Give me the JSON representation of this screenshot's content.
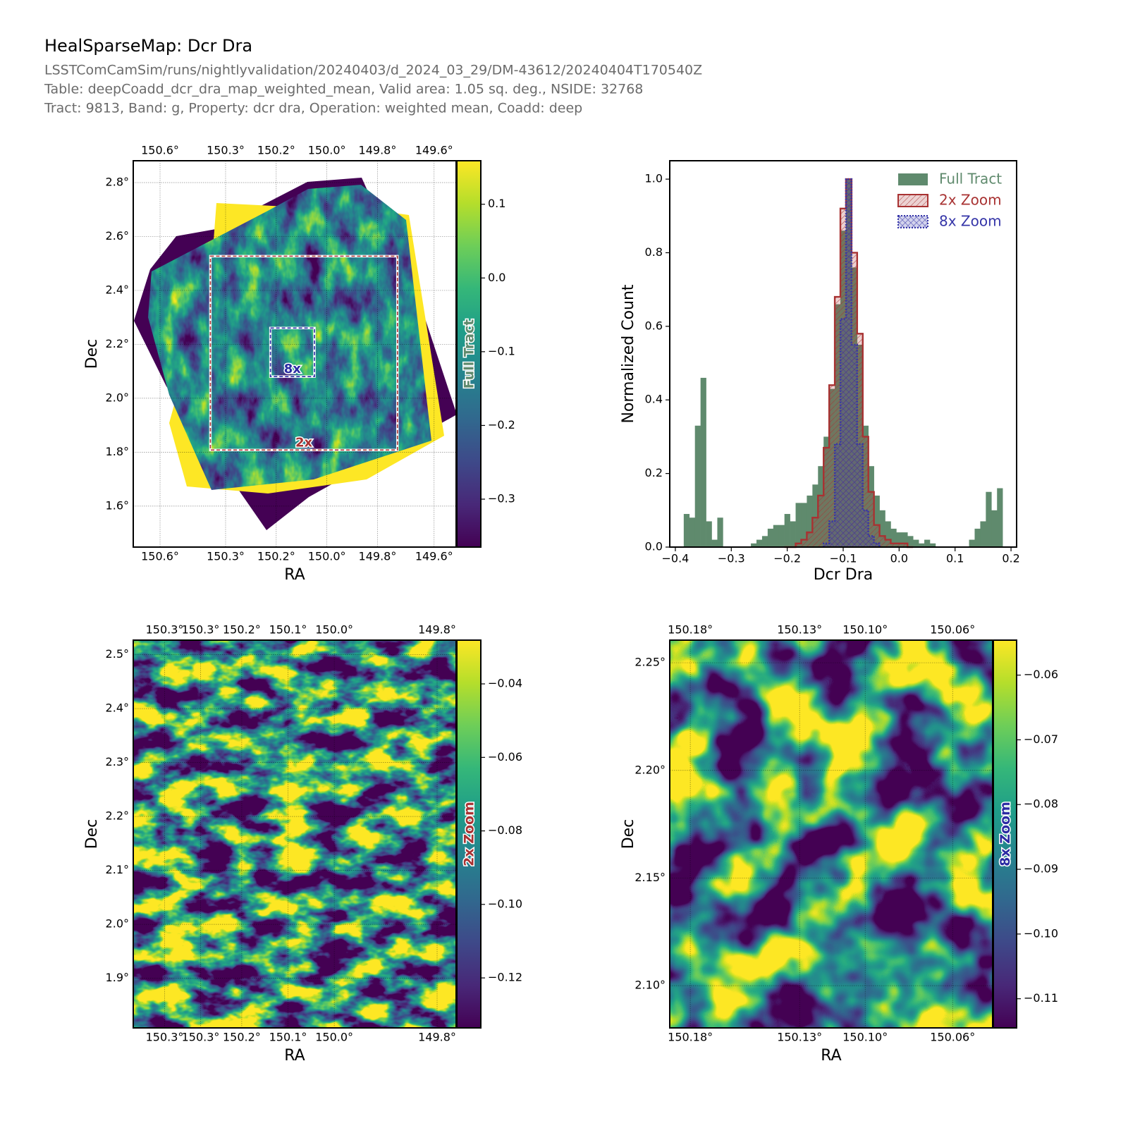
{
  "figure": {
    "title": "HealSparseMap: Dcr Dra",
    "lines": [
      "LSSTComCamSim/runs/nightlyvalidation/20240403/d_2024_03_29/DM-43612/20240404T170540Z",
      "Table: deepCoadd_dcr_dra_map_weighted_mean, Valid area: 1.05 sq. deg., NSIDE: 32768",
      "Tract: 9813, Band: g, Property: dcr dra, Operation: weighted mean, Coadd: deep"
    ]
  },
  "chart_data": [
    {
      "type": "map",
      "xlabel": "RA",
      "ylabel": "Dec",
      "xlim": [
        150.65,
        149.566
      ],
      "ylim": [
        1.448,
        2.881
      ],
      "xticks": [
        {
          "value": 150.56,
          "label": "150.6°"
        },
        {
          "value": 150.34,
          "label": "150.3°"
        },
        {
          "value": 150.17,
          "label": "150.2°"
        },
        {
          "value": 150.0,
          "label": "150.0°"
        },
        {
          "value": 149.83,
          "label": "149.8°"
        },
        {
          "value": 149.64,
          "label": "149.6°"
        }
      ],
      "yticks": [
        {
          "value": 1.6,
          "label": "1.6°"
        },
        {
          "value": 1.8,
          "label": "1.8°"
        },
        {
          "value": 2.0,
          "label": "2.0°"
        },
        {
          "value": 2.2,
          "label": "2.2°"
        },
        {
          "value": 2.4,
          "label": "2.4°"
        },
        {
          "value": 2.6,
          "label": "2.6°"
        },
        {
          "value": 2.8,
          "label": "2.8°"
        }
      ],
      "grid": true,
      "colorbar": {
        "label": "Full Tract",
        "color": "#5f8a6d",
        "lim": [
          -0.365,
          0.159
        ],
        "ticks": [
          0.1,
          {
            "value": 0,
            "label": "0.0"
          },
          {
            "value": -0.1,
            "label": "−0.1"
          },
          {
            "value": -0.2,
            "label": "−0.2"
          },
          {
            "value": -0.3,
            "label": "−0.3"
          }
        ]
      },
      "annotations": [
        {
          "text": "2x",
          "color": "#a83232"
        },
        {
          "text": "8x",
          "color": "#2b2ba3"
        }
      ]
    },
    {
      "type": "histogram",
      "xlabel": "Dcr Dra",
      "ylabel": "Normalized Count",
      "xlim": [
        -0.41,
        0.21
      ],
      "ylim": [
        0,
        1.05
      ],
      "xticks": [
        {
          "value": -0.4,
          "label": "−0.4"
        },
        {
          "value": -0.3,
          "label": "−0.3"
        },
        {
          "value": -0.2,
          "label": "−0.2"
        },
        {
          "value": -0.1,
          "label": "−0.1"
        },
        {
          "value": 0,
          "label": "0.0"
        },
        0.1,
        0.2
      ],
      "yticks": [
        {
          "value": 0,
          "label": "0.0"
        },
        0.2,
        0.4,
        0.6,
        0.8,
        {
          "value": 1,
          "label": "1.0"
        }
      ],
      "legend": "upper right",
      "series": [
        {
          "name": "Full Tract",
          "color": "#5f8a6d",
          "histtype": "bar",
          "hatch": null,
          "linestyle": "solid",
          "bins": [
            -0.385,
            -0.375,
            -0.365,
            -0.355,
            -0.345,
            -0.335,
            -0.325,
            -0.315,
            -0.305,
            -0.295,
            -0.285,
            -0.275,
            -0.265,
            -0.255,
            -0.245,
            -0.235,
            -0.225,
            -0.215,
            -0.205,
            -0.195,
            -0.185,
            -0.175,
            -0.165,
            -0.155,
            -0.145,
            -0.135,
            -0.125,
            -0.115,
            -0.105,
            -0.095,
            -0.085,
            -0.075,
            -0.065,
            -0.055,
            -0.045,
            -0.035,
            -0.025,
            -0.015,
            -0.005,
            0.005,
            0.015,
            0.025,
            0.035,
            0.045,
            0.055,
            0.065,
            0.075,
            0.085,
            0.095,
            0.105,
            0.115,
            0.125,
            0.135,
            0.145,
            0.155,
            0.165,
            0.175,
            0.185
          ],
          "values": [
            0.09,
            0.08,
            0.33,
            0.46,
            0.07,
            0.02,
            0.08,
            0,
            0,
            0,
            0,
            0,
            0.01,
            0.02,
            0.03,
            0.05,
            0.06,
            0.06,
            0.09,
            0.07,
            0.12,
            0.12,
            0.14,
            0.17,
            0.22,
            0.3,
            0.43,
            0.66,
            0.86,
            1.0,
            0.76,
            0.55,
            0.33,
            0.22,
            0.14,
            0.1,
            0.07,
            0.05,
            0.04,
            0.04,
            0.03,
            0.02,
            0.01,
            0.02,
            0.01,
            0,
            0,
            0,
            0,
            0,
            0,
            0.02,
            0.05,
            0.07,
            0.15,
            0.1,
            0.16
          ]
        },
        {
          "name": "2x Zoom",
          "color": "#a83232",
          "histtype": "step",
          "hatch": "//",
          "linestyle": "solid",
          "bins": [
            -0.205,
            -0.195,
            -0.185,
            -0.175,
            -0.165,
            -0.155,
            -0.145,
            -0.135,
            -0.125,
            -0.115,
            -0.105,
            -0.095,
            -0.085,
            -0.075,
            -0.065,
            -0.055,
            -0.045,
            -0.035,
            -0.025,
            -0.015,
            -0.005,
            0.005,
            0.015,
            0.025
          ],
          "values": [
            0,
            0,
            0.01,
            0.02,
            0.04,
            0.08,
            0.14,
            0.27,
            0.44,
            0.68,
            0.92,
            1.0,
            0.8,
            0.58,
            0.3,
            0.15,
            0.06,
            0.03,
            0.02,
            0.01,
            0.01,
            0.01,
            0
          ]
        },
        {
          "name": "8x Zoom",
          "color": "#3535a8",
          "histtype": "step",
          "hatch": "xx",
          "linestyle": "dotted",
          "bins": [
            -0.135,
            -0.125,
            -0.115,
            -0.105,
            -0.095,
            -0.085,
            -0.075,
            -0.065,
            -0.055,
            -0.045,
            -0.035
          ],
          "values": [
            0.01,
            0.07,
            0.28,
            0.62,
            1.0,
            0.55,
            0.28,
            0.1,
            0.03,
            0.01
          ]
        }
      ]
    },
    {
      "type": "map",
      "xlabel": "RA",
      "ylabel": "Dec",
      "xlim": [
        150.391,
        149.763
      ],
      "ylim": [
        1.808,
        2.527
      ],
      "xticks": [
        {
          "value": 150.33,
          "label": "150.3°"
        },
        {
          "value": 150.26,
          "label": "150.3°"
        },
        {
          "value": 150.18,
          "label": "150.2°"
        },
        {
          "value": 150.09,
          "label": "150.1°"
        },
        {
          "value": 150.0,
          "label": "150.0°"
        },
        {
          "value": 149.8,
          "label": "149.8°"
        }
      ],
      "yticks": [
        {
          "value": 1.9,
          "label": "1.9°"
        },
        {
          "value": 2.0,
          "label": "2.0°"
        },
        {
          "value": 2.1,
          "label": "2.1°"
        },
        {
          "value": 2.2,
          "label": "2.2°"
        },
        {
          "value": 2.3,
          "label": "2.3°"
        },
        {
          "value": 2.4,
          "label": "2.4°"
        },
        {
          "value": 2.5,
          "label": "2.5°"
        }
      ],
      "grid": true,
      "colorbar": {
        "label": "2x Zoom",
        "color": "#a83232",
        "lim": [
          -0.1336,
          -0.0281
        ],
        "ticks": [
          {
            "value": -0.04,
            "label": "−0.04"
          },
          {
            "value": -0.06,
            "label": "−0.06"
          },
          {
            "value": -0.08,
            "label": "−0.08"
          },
          {
            "value": -0.1,
            "label": "−0.10"
          },
          {
            "value": -0.12,
            "label": "−0.12"
          }
        ]
      }
    },
    {
      "type": "map",
      "xlabel": "RA",
      "ylabel": "Dec",
      "xlim": [
        150.1894,
        150.0417
      ],
      "ylim": [
        2.0804,
        2.2605
      ],
      "xticks": [
        {
          "value": 150.18,
          "label": "150.18°"
        },
        {
          "value": 150.13,
          "label": "150.13°"
        },
        {
          "value": 150.1,
          "label": "150.10°"
        },
        {
          "value": 150.06,
          "label": "150.06°"
        }
      ],
      "yticks": [
        {
          "value": 2.1,
          "label": "2.10°"
        },
        {
          "value": 2.15,
          "label": "2.15°"
        },
        {
          "value": 2.2,
          "label": "2.20°"
        },
        {
          "value": 2.25,
          "label": "2.25°"
        }
      ],
      "grid": true,
      "colorbar": {
        "label": "8x Zoom",
        "color": "#2b2ba3",
        "lim": [
          -0.1145,
          -0.0546
        ],
        "ticks": [
          {
            "value": -0.06,
            "label": "−0.06"
          },
          {
            "value": -0.07,
            "label": "−0.07"
          },
          {
            "value": -0.08,
            "label": "−0.08"
          },
          {
            "value": -0.09,
            "label": "−0.09"
          },
          {
            "value": -0.1,
            "label": "−0.10"
          },
          {
            "value": -0.11,
            "label": "−0.11"
          }
        ]
      }
    }
  ]
}
